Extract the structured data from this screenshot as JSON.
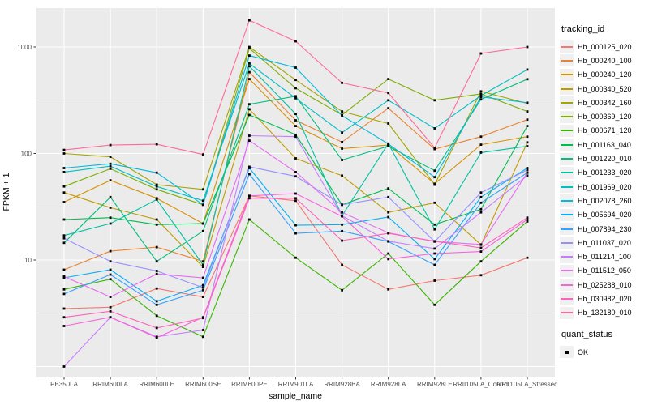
{
  "figure": {
    "background": "#FFFFFF",
    "panel_bg": "#EBEBEB",
    "grid_color": "#FFFFFF",
    "axis_text_color": "#4D4D4D",
    "tick_mark_color": "#333333",
    "point_color": "#000000"
  },
  "axes": {
    "y_label": "FPKM + 1",
    "x_label": "sample_name",
    "y_tick_labels": [
      "10",
      "100",
      "1000"
    ]
  },
  "legend": {
    "tracking_title": "tracking_id",
    "quant_title": "quant_status",
    "quant_items": [
      {
        "label": "OK"
      }
    ]
  },
  "chart_data": {
    "type": "line",
    "title": "",
    "xlabel": "sample_name",
    "ylabel": "FPKM + 1",
    "y_scale": "log10",
    "y_tick_values": [
      10,
      100,
      1000
    ],
    "ylim": [
      0.85,
      2300
    ],
    "grid": true,
    "legend_position": "right",
    "quant_status": "OK",
    "categories": [
      "PB350LA",
      "RRIM600LA",
      "RRIM600LE",
      "RRIM600SE",
      "RRIM600PE",
      "RRIM901LA",
      "RRIM928BA",
      "RRIM928LA",
      "RRIM928LE",
      "RRII105LA_Control",
      "RRII105LA_Stressed"
    ],
    "series": [
      {
        "name": "Hb_000125_020",
        "color": "#F8766D",
        "values": [
          3.5,
          3.6,
          5.4,
          4.5,
          40,
          36,
          9.0,
          5.3,
          6.4,
          7.2,
          10.5
        ]
      },
      {
        "name": "Hb_000240_100",
        "color": "#EA8331",
        "values": [
          8.1,
          12.1,
          13.2,
          9.7,
          580,
          205,
          128,
          266,
          110,
          144,
          208
        ]
      },
      {
        "name": "Hb_000240_120",
        "color": "#D89000",
        "values": [
          35,
          56,
          38,
          22,
          500,
          181,
          111,
          120,
          52,
          121,
          144
        ]
      },
      {
        "name": "Hb_000340_520",
        "color": "#C09B00",
        "values": [
          43,
          31,
          24,
          8.6,
          260,
          90,
          62,
          28,
          34.5,
          13.9,
          127
        ]
      },
      {
        "name": "Hb_000342_160",
        "color": "#A3A500",
        "values": [
          100,
          93,
          51,
          46,
          1000,
          490,
          248,
          191,
          51,
          383,
          295
        ]
      },
      {
        "name": "Hb_000369_120",
        "color": "#7CAE00",
        "values": [
          49,
          72,
          46,
          33,
          970,
          410,
          230,
          500,
          316,
          363,
          248
        ]
      },
      {
        "name": "Hb_000671_120",
        "color": "#39B600",
        "values": [
          5.3,
          6.6,
          3.0,
          1.9,
          24,
          10.5,
          5.2,
          11.5,
          3.8,
          9.7,
          23
        ]
      },
      {
        "name": "Hb_001163_040",
        "color": "#00BB4E",
        "values": [
          24,
          25,
          21.5,
          22,
          230,
          150,
          33,
          47,
          21.5,
          30,
          181
        ]
      },
      {
        "name": "Hb_001220_010",
        "color": "#00BF7D",
        "values": [
          14.5,
          39,
          9.7,
          18.7,
          290,
          345,
          87,
          117,
          69,
          322,
          498
        ]
      },
      {
        "name": "Hb_001233_020",
        "color": "#00C1A3",
        "values": [
          17,
          22,
          37,
          9.0,
          660,
          235,
          26,
          124,
          19.4,
          102,
          117
        ]
      },
      {
        "name": "Hb_001969_020",
        "color": "#00BFC4",
        "values": [
          67,
          76,
          49,
          36,
          700,
          330,
          157,
          316,
          172,
          350,
          614
        ]
      },
      {
        "name": "Hb_002078_260",
        "color": "#00BAE0",
        "values": [
          73,
          80,
          66,
          33,
          830,
          640,
          227,
          123,
          60,
          340,
          300
        ]
      },
      {
        "name": "Hb_005694_020",
        "color": "#00B0F6",
        "values": [
          6.8,
          8.1,
          4.1,
          5.8,
          73,
          21.2,
          21.5,
          25.3,
          10.2,
          39,
          73
        ]
      },
      {
        "name": "Hb_007894_230",
        "color": "#35A2FF",
        "values": [
          4.8,
          7.3,
          3.8,
          5.2,
          64,
          17.8,
          18.7,
          14.9,
          9.0,
          34.5,
          66
        ]
      },
      {
        "name": "Hb_011037_020",
        "color": "#9590FF",
        "values": [
          16,
          9.7,
          7.9,
          5.5,
          75,
          61,
          33,
          39,
          14.9,
          43,
          70
        ]
      },
      {
        "name": "Hb_011214_100",
        "color": "#C77CFF",
        "values": [
          1.0,
          2.9,
          1.9,
          2.2,
          147,
          144,
          26,
          15,
          12.8,
          28,
          62
        ]
      },
      {
        "name": "Hb_011512_050",
        "color": "#E76BF3",
        "values": [
          7.0,
          4.5,
          7.4,
          6.8,
          132,
          67,
          28,
          18,
          14.9,
          14,
          66
        ]
      },
      {
        "name": "Hb_025288_010",
        "color": "#FA62DB",
        "values": [
          2.4,
          2.9,
          1.87,
          2.9,
          40,
          42,
          25.7,
          10.2,
          11.5,
          12,
          24
        ]
      },
      {
        "name": "Hb_030982_020",
        "color": "#FF62BC",
        "values": [
          2.9,
          3.3,
          2.3,
          2.85,
          38,
          38,
          15.2,
          17.8,
          15,
          13,
          25
        ]
      },
      {
        "name": "Hb_132180_010",
        "color": "#FF6A98",
        "values": [
          108,
          120,
          122,
          98,
          1780,
          1130,
          460,
          370,
          113,
          870,
          1000
        ]
      }
    ]
  }
}
